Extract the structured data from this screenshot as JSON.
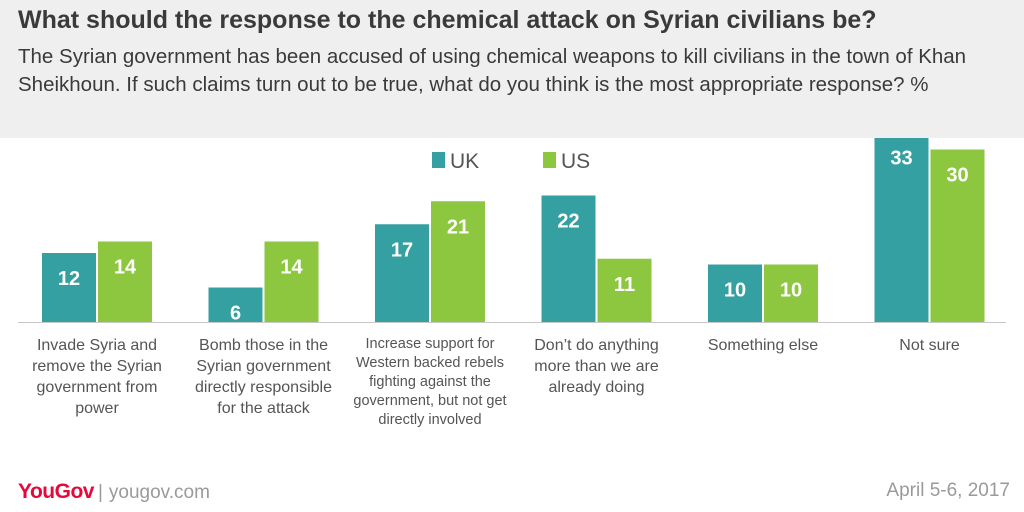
{
  "title": "What should the response to the chemical attack on Syrian civilians be?",
  "subtitle": "The Syrian government has been accused of using chemical weapons to kill civilians in the town of Khan Sheikhoun. If such claims turn out to be true, what do you think is the most appropriate response? %",
  "footer": {
    "brand": "YouGov",
    "site": "yougov.com",
    "date": "April 5-6, 2017"
  },
  "colors": {
    "uk": "#34a0a2",
    "us": "#8dc63f",
    "header_bg": "#efefef",
    "brand": "#e5093b"
  },
  "chart_data": {
    "type": "bar",
    "categories": [
      "Invade Syria and remove the Syrian government from power",
      "Bomb those in the Syrian government directly responsible for the attack",
      "Increase support for Western backed rebels fighting against the government, but not get directly involved",
      "Don’t do anything more than we are already doing",
      "Something else",
      "Not sure"
    ],
    "series": [
      {
        "name": "UK",
        "values": [
          12,
          6,
          17,
          22,
          10,
          33
        ]
      },
      {
        "name": "US",
        "values": [
          14,
          14,
          21,
          11,
          10,
          30
        ]
      }
    ],
    "ylim": [
      0,
      36
    ],
    "legend": "top-center",
    "grid": false,
    "data_labels": true
  }
}
